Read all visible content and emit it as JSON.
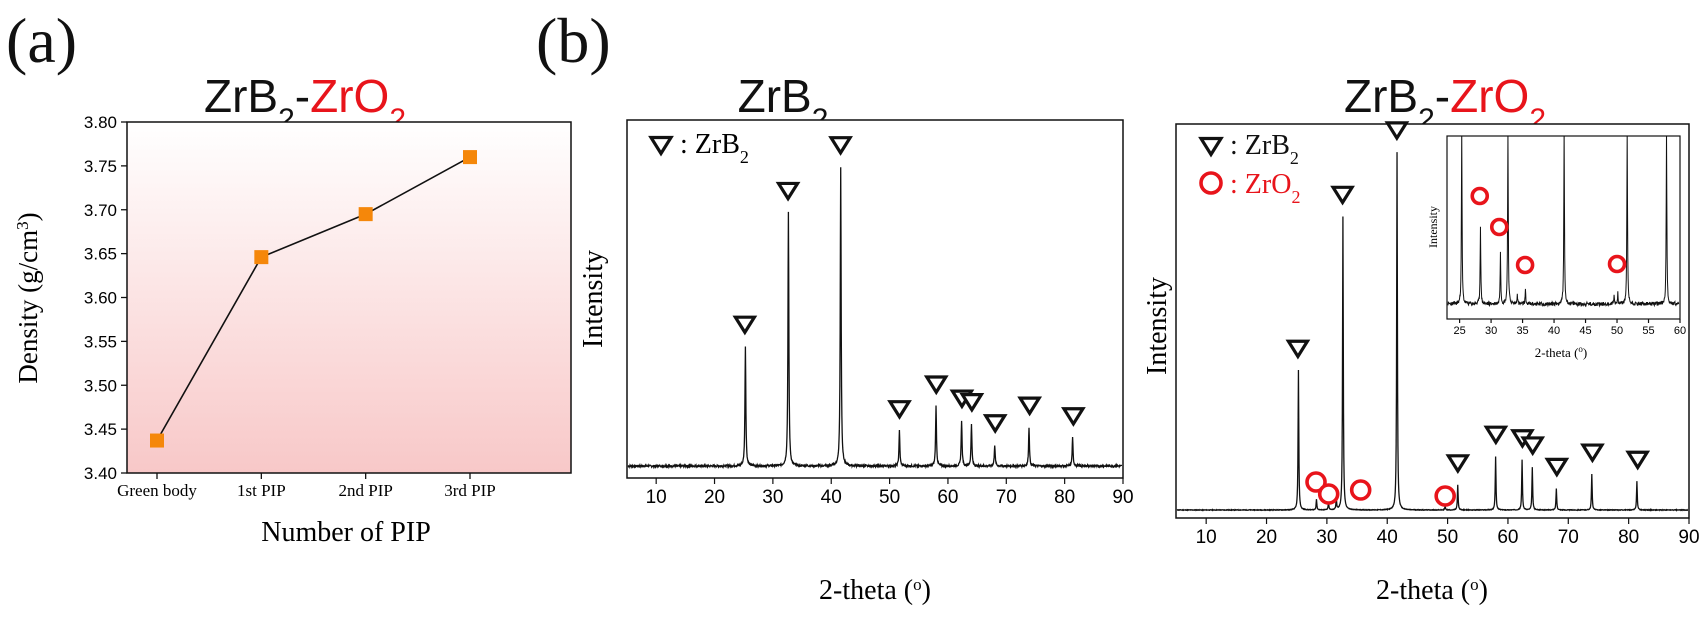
{
  "panel_labels": {
    "a": "(a)",
    "b": "(b)"
  },
  "colors": {
    "accent": "#e8141b",
    "marker": "#f5870a",
    "line": "#111111",
    "gradient_top": "#ffffff",
    "gradient_bottom": "#f8c8c8"
  },
  "chart_data": [
    {
      "id": "density",
      "type": "line",
      "title_parts": [
        {
          "text": "ZrB",
          "color": "#111111"
        },
        {
          "text": "2",
          "color": "#111111",
          "sub": true
        },
        {
          "text": "-",
          "color": "#111111"
        },
        {
          "text": "ZrO",
          "color": "#e8141b"
        },
        {
          "text": "2",
          "color": "#e8141b",
          "sub": true
        }
      ],
      "categories": [
        "Green body",
        "1st PIP",
        "2nd PIP",
        "3rd PIP"
      ],
      "values": [
        3.437,
        3.646,
        3.695,
        3.76
      ],
      "xlabel": "Number of PIP",
      "ylabel": "Density (g/cm",
      "ylabel_sup": "3",
      "ylabel_end": ")",
      "ylim": [
        3.4,
        3.8
      ],
      "yticks": [
        "3.40",
        "3.45",
        "3.50",
        "3.55",
        "3.60",
        "3.65",
        "3.70",
        "3.75",
        "3.80"
      ]
    },
    {
      "id": "xrd_zrb2",
      "type": "line",
      "title_parts": [
        {
          "text": "ZrB",
          "color": "#111111"
        },
        {
          "text": "2",
          "color": "#111111",
          "sub": true
        }
      ],
      "xlabel": "2-theta (",
      "xlabel_sup": "o",
      "xlabel_end": ")",
      "ylabel": "Intensity",
      "xlim": [
        5,
        90
      ],
      "xticks": [
        "10",
        "20",
        "30",
        "40",
        "50",
        "60",
        "70",
        "80",
        "90"
      ],
      "legend": [
        {
          "symbol": "triangle",
          "label": ": ZrB",
          "sub": "2",
          "color": "#111111"
        }
      ],
      "peaks": [
        [
          25.2,
          34
        ],
        [
          32.6,
          72
        ],
        [
          41.6,
          85
        ],
        [
          51.7,
          10
        ],
        [
          58.0,
          17
        ],
        [
          62.4,
          13
        ],
        [
          64.1,
          12
        ],
        [
          68.1,
          6
        ],
        [
          74.0,
          11
        ],
        [
          81.5,
          8
        ]
      ],
      "zrb2_markers": [
        25.2,
        32.6,
        41.6,
        51.7,
        58.0,
        62.4,
        64.1,
        68.1,
        74.0,
        81.5
      ]
    },
    {
      "id": "xrd_zrb2_zro2",
      "type": "line",
      "title_parts": [
        {
          "text": "ZrB",
          "color": "#111111"
        },
        {
          "text": "2",
          "color": "#111111",
          "sub": true
        },
        {
          "text": "-",
          "color": "#111111"
        },
        {
          "text": "ZrO",
          "color": "#e8141b"
        },
        {
          "text": "2",
          "color": "#e8141b",
          "sub": true
        }
      ],
      "xlabel": "2-theta (",
      "xlabel_sup": "o",
      "xlabel_end": ")",
      "ylabel": "Intensity",
      "xlim": [
        5,
        90
      ],
      "xticks": [
        "10",
        "20",
        "30",
        "40",
        "50",
        "60",
        "70",
        "80",
        "90"
      ],
      "legend": [
        {
          "symbol": "triangle",
          "label": ": ZrB",
          "sub": "2",
          "color": "#111111"
        },
        {
          "symbol": "circle",
          "label": ": ZrO",
          "sub": "2",
          "color": "#e8141b"
        }
      ],
      "peaks": [
        [
          25.2,
          39
        ],
        [
          28.2,
          3
        ],
        [
          30.2,
          2
        ],
        [
          31.5,
          3
        ],
        [
          32.6,
          82
        ],
        [
          41.6,
          100
        ],
        [
          49.6,
          1
        ],
        [
          51.7,
          7
        ],
        [
          58.0,
          15
        ],
        [
          62.4,
          14
        ],
        [
          64.1,
          12
        ],
        [
          68.1,
          6
        ],
        [
          74.0,
          10
        ],
        [
          81.5,
          8
        ]
      ],
      "zrb2_markers": [
        25.2,
        32.6,
        41.6,
        51.7,
        58.0,
        62.4,
        64.1,
        68.1,
        74.0,
        81.5
      ],
      "zro2_markers": [
        28.2,
        30.3,
        35.6,
        49.6
      ],
      "inset": {
        "xlim": [
          23,
          60
        ],
        "xticks": [
          "25",
          "30",
          "35",
          "40",
          "45",
          "50",
          "55",
          "60"
        ],
        "xlabel": "2-theta (",
        "xlabel_sup": "o",
        "xlabel_end": ")",
        "ylabel": "Intensity",
        "peaks": [
          [
            25.2,
            100
          ],
          [
            28.2,
            45
          ],
          [
            31.4,
            30
          ],
          [
            32.6,
            100
          ],
          [
            34.1,
            6
          ],
          [
            35.4,
            8
          ],
          [
            41.6,
            100
          ],
          [
            49.6,
            5
          ],
          [
            50.2,
            6
          ],
          [
            51.7,
            100
          ],
          [
            58.0,
            100
          ]
        ],
        "zro2_markers": [
          28.2,
          31.3,
          35.4,
          50.0
        ]
      }
    }
  ]
}
